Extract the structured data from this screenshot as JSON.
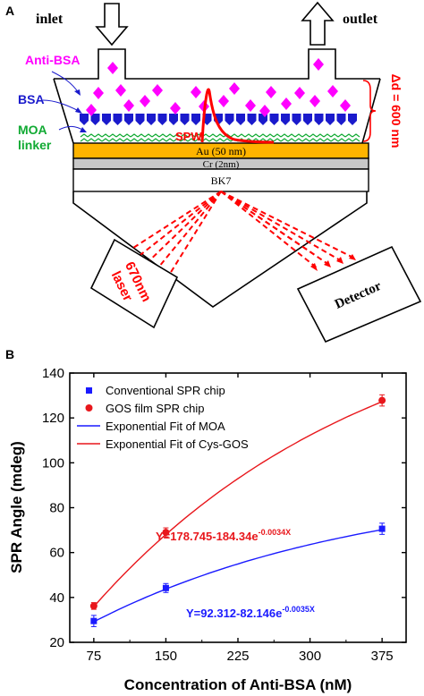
{
  "panel_a": {
    "label": "A",
    "inlet": "inlet",
    "outlet": "outlet",
    "anti_bsa": "Anti-BSA",
    "bsa": "BSA",
    "moa": "MOA",
    "linker": "linker",
    "spw": "SPW",
    "delta_d": "Δd = 600 nm",
    "au_layer": "Au (50 nm)",
    "cr_layer": "Cr (2nm)",
    "bk7_layer": "BK7",
    "laser_line1": "670nm",
    "laser_line2": "laser",
    "detector": "Detector",
    "colors": {
      "anti_bsa": "#ff00ff",
      "bsa": "#1a1acc",
      "moa": "#11aa33",
      "spw": "#ff0000",
      "delta_d": "#ff0000",
      "au": "#ffb400",
      "cr": "#c8c8c8",
      "beam": "#ff0000"
    }
  },
  "chart_data": {
    "label": "B",
    "type": "scatter",
    "xlabel": "Concentration of Anti-BSA (nM)",
    "ylabel": "SPR Angle (mdeg)",
    "xlim": [
      50,
      400
    ],
    "ylim": [
      20,
      140
    ],
    "xticks": [
      75,
      150,
      225,
      300,
      375
    ],
    "yticks": [
      20,
      40,
      60,
      80,
      100,
      120,
      140
    ],
    "legend_position": "top-left",
    "series": [
      {
        "name": "Conventional SPR chip",
        "marker": "square",
        "color": "#1a1aff",
        "x": [
          75,
          150,
          375
        ],
        "y": [
          29.5,
          44.2,
          70.6
        ],
        "err": [
          2.5,
          2.0,
          2.5
        ]
      },
      {
        "name": "GOS film SPR chip",
        "marker": "circle",
        "color": "#e8171c",
        "x": [
          75,
          150,
          375
        ],
        "y": [
          36.2,
          69.0,
          127.8
        ],
        "err": [
          1.5,
          2.0,
          2.5
        ]
      }
    ],
    "fits": [
      {
        "name": "Exponential Fit of MOA",
        "color": "#1a1aff",
        "a": 92.312,
        "b": 82.146,
        "k": 0.0035,
        "equation_base": "Y=92.312-82.146e",
        "equation_exp": "-0.0035X"
      },
      {
        "name": "Exponential Fit of Cys-GOS",
        "color": "#e8171c",
        "a": 178.745,
        "b": 184.34,
        "k": 0.0034,
        "equation_base": "Y=178.745-184.34e",
        "equation_exp": "-0.0034X"
      }
    ]
  }
}
